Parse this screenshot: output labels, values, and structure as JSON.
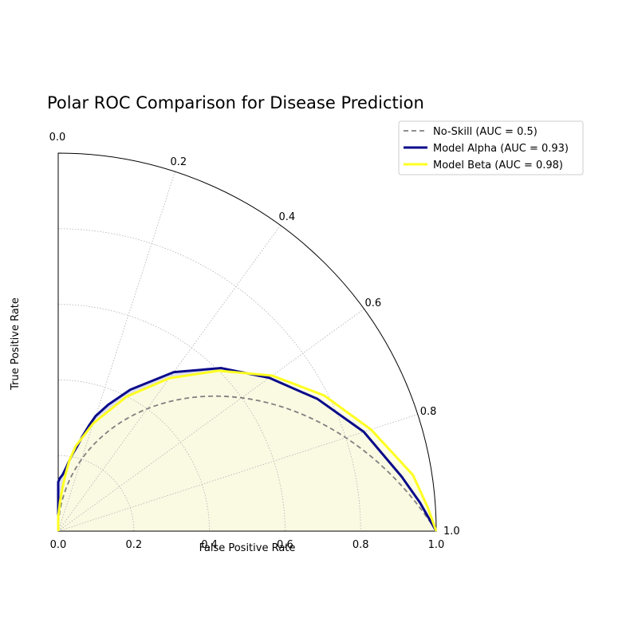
{
  "chart_data": {
    "type": "line",
    "subtype": "polar-roc",
    "title": "Polar ROC Comparison for Disease Prediction",
    "xlabel": "False Positive Rate",
    "ylabel": "True Positive Rate",
    "radial_ticks": [
      "0.0",
      "0.2",
      "0.4",
      "0.6",
      "0.8",
      "1.0"
    ],
    "angular_ticks": [
      {
        "label": "0.0",
        "value": 0.0
      },
      {
        "label": "0.2",
        "value": 0.2
      },
      {
        "label": "0.4",
        "value": 0.4
      },
      {
        "label": "0.6",
        "value": 0.6
      },
      {
        "label": "0.8",
        "value": 0.8
      },
      {
        "label": "1.0",
        "value": 1.0
      }
    ],
    "xlim": [
      0,
      1
    ],
    "ylim": [
      0,
      1
    ],
    "grid": true,
    "legend_position": "top-right",
    "series": [
      {
        "name": "No-Skill (AUC = 0.5)",
        "color": "#808080",
        "style": "dashed",
        "fill": false,
        "points": [
          [
            0,
            0
          ],
          [
            1,
            1
          ]
        ]
      },
      {
        "name": "Model Alpha (AUC = 0.93)",
        "color": "#0a0a8a",
        "style": "solid",
        "fill": true,
        "fill_color": "#d8d9ec",
        "points": [
          [
            0.0,
            0.0
          ],
          [
            0.0,
            0.13
          ],
          [
            0.02,
            0.14
          ],
          [
            0.05,
            0.15
          ],
          [
            0.08,
            0.17
          ],
          [
            0.1,
            0.19
          ],
          [
            0.12,
            0.21
          ],
          [
            0.14,
            0.23
          ],
          [
            0.16,
            0.26
          ],
          [
            0.18,
            0.29
          ],
          [
            0.2,
            0.32
          ],
          [
            0.24,
            0.36
          ],
          [
            0.3,
            0.42
          ],
          [
            0.4,
            0.52
          ],
          [
            0.5,
            0.61
          ],
          [
            0.6,
            0.69
          ],
          [
            0.7,
            0.77
          ],
          [
            0.8,
            0.85
          ],
          [
            0.9,
            0.92
          ],
          [
            0.95,
            0.96
          ],
          [
            1.0,
            1.0
          ]
        ]
      },
      {
        "name": "Model Beta (AUC = 0.98)",
        "color": "#ffff22",
        "style": "solid",
        "fill": true,
        "fill_color": "#ffffe0",
        "points": [
          [
            0.0,
            0.0
          ],
          [
            0.0,
            0.04
          ],
          [
            0.02,
            0.05
          ],
          [
            0.04,
            0.08
          ],
          [
            0.06,
            0.11
          ],
          [
            0.08,
            0.15
          ],
          [
            0.1,
            0.19
          ],
          [
            0.13,
            0.23
          ],
          [
            0.2,
            0.3
          ],
          [
            0.3,
            0.4
          ],
          [
            0.4,
            0.5
          ],
          [
            0.5,
            0.6
          ],
          [
            0.6,
            0.7
          ],
          [
            0.7,
            0.79
          ],
          [
            0.8,
            0.87
          ],
          [
            0.9,
            0.95
          ],
          [
            0.96,
            0.98
          ],
          [
            1.0,
            1.0
          ]
        ]
      }
    ]
  }
}
